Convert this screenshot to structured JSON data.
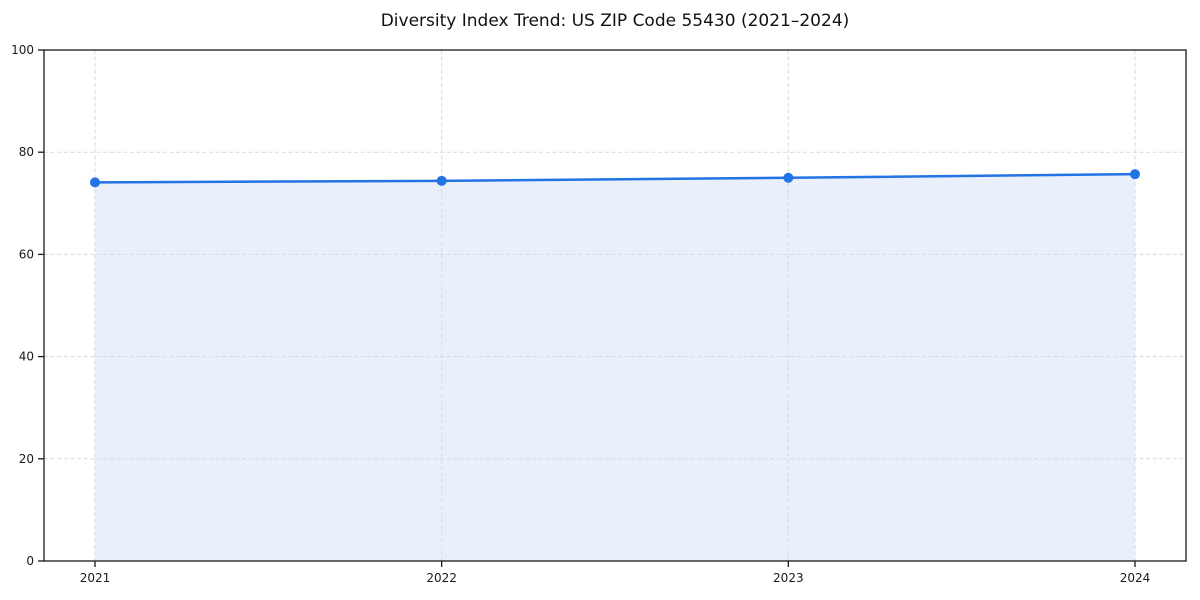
{
  "chart_data": {
    "type": "line",
    "title": "Diversity Index Trend: US ZIP Code 55430 (2021–2024)",
    "x": [
      "2021",
      "2022",
      "2023",
      "2024"
    ],
    "values": [
      74.1,
      74.4,
      75.0,
      75.7
    ],
    "xlabel": "",
    "ylabel": "",
    "ylim": [
      0,
      100
    ],
    "yticks": [
      0,
      20,
      40,
      60,
      80,
      100
    ],
    "grid": true,
    "grid_style": "dashed",
    "area_fill": true,
    "legend_position": "none",
    "colors": {
      "line": "#2273e3",
      "marker": "#2273e3",
      "fill": "#e9f0fc",
      "grid": "#d9d9d9",
      "axis": "#1a1a1a",
      "text": "#1a1a1a",
      "background": "#ffffff"
    }
  }
}
